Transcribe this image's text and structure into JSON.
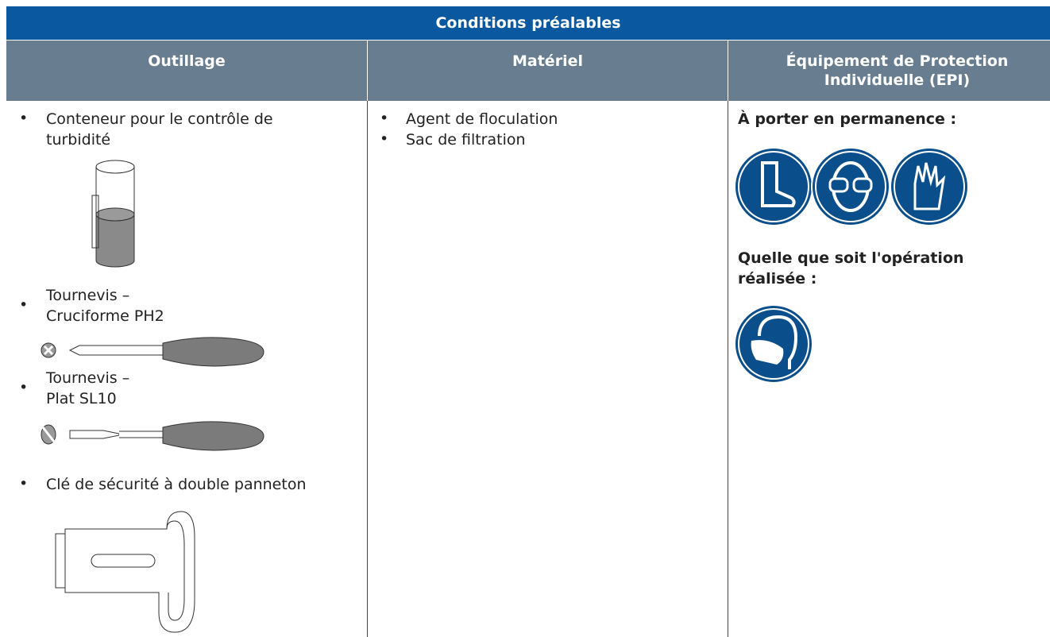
{
  "header": {
    "title": "Conditions préalables"
  },
  "columns": [
    "Outillage",
    "Matériel",
    "Équipement de Protection Individuelle (EPI)"
  ],
  "outillage": [
    {
      "lines": [
        "Conteneur pour le contrôle de",
        "turbidité"
      ]
    },
    {
      "lines": [
        "Tournevis –",
        "Cruciforme PH2"
      ]
    },
    {
      "lines": [
        "Tournevis –",
        "Plat SL10"
      ]
    },
    {
      "lines": [
        "Clé de sécurité à double panneton"
      ]
    }
  ],
  "materiel": [
    "Agent de floculation",
    "Sac de filtration"
  ],
  "epi": [
    {
      "lines": [
        "À porter en permanence :"
      ]
    },
    {
      "lines": [
        "Quelle que soit l'opération",
        "réalisée :"
      ]
    }
  ]
}
